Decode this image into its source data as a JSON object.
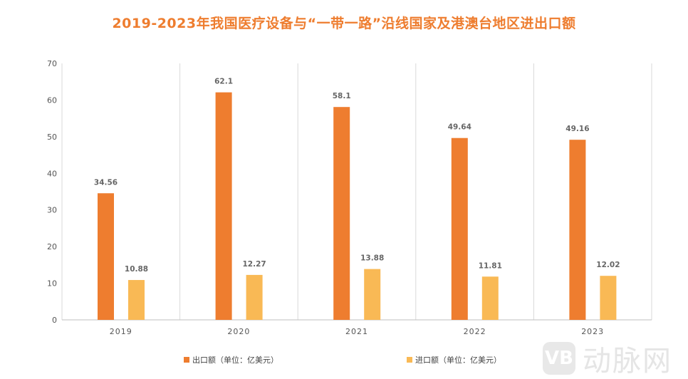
{
  "chart_data": {
    "type": "bar",
    "title": "2019-2023年我国医疗设备与“一带一路”沿线国家及港澳台地区进出口额",
    "categories": [
      "2019",
      "2020",
      "2021",
      "2022",
      "2023"
    ],
    "series": [
      {
        "name": "出口额（单位：亿美元）",
        "values": [
          34.56,
          62.1,
          58.1,
          49.64,
          49.16
        ],
        "color": "#ee7d2f"
      },
      {
        "name": "进口额（单位：亿美元）",
        "values": [
          10.88,
          12.27,
          13.88,
          11.81,
          12.02
        ],
        "color": "#f9b955"
      }
    ],
    "data_labels": [
      [
        "34.56",
        "62.1",
        "58.1",
        "49.64",
        "49.16"
      ],
      [
        "10.88",
        "12.27",
        "13.88",
        "11.81",
        "12.02"
      ]
    ],
    "ylim": [
      0,
      70
    ],
    "yticks": [
      "0",
      "10",
      "20",
      "30",
      "40",
      "50",
      "60",
      "70"
    ],
    "xlabel": "",
    "ylabel": "",
    "grid": "vertical category separators",
    "legend": "bottom"
  },
  "watermark": {
    "logo": "VB",
    "text": "动脉网"
  }
}
